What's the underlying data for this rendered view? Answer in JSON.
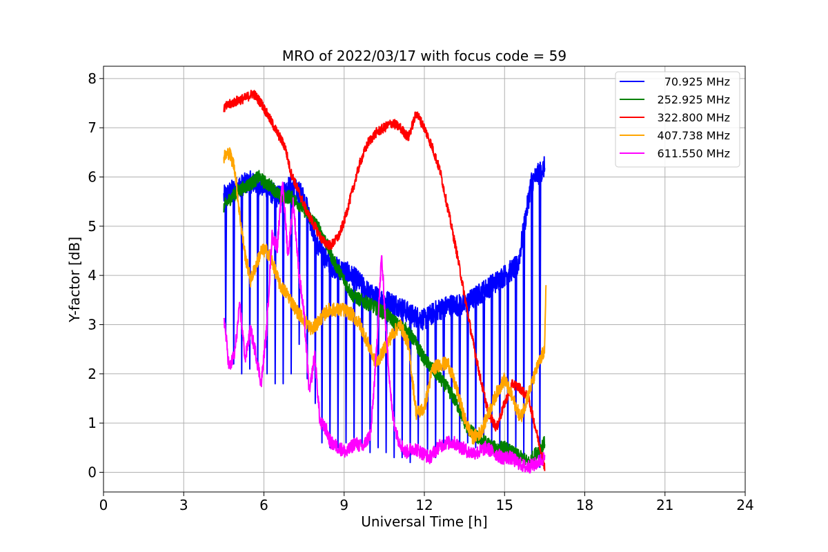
{
  "chart_data": {
    "type": "line",
    "title": "MRO of 2022/03/17 with focus code = 59",
    "xlabel": "Universal Time [h]",
    "ylabel": "Y-factor [dB]",
    "xlim": [
      0,
      24
    ],
    "ylim": [
      -0.4,
      8.25
    ],
    "xticks": [
      0,
      3,
      6,
      9,
      12,
      15,
      18,
      21,
      24
    ],
    "yticks": [
      0,
      1,
      2,
      3,
      4,
      5,
      6,
      7,
      8
    ],
    "grid": true,
    "legend_position": "top-right",
    "series": [
      {
        "name": "70.925 MHz",
        "color": "#0000ff",
        "envelope": [
          [
            4.5,
            5.6
          ],
          [
            5.0,
            5.8
          ],
          [
            5.5,
            5.9
          ],
          [
            6.0,
            5.8
          ],
          [
            6.5,
            5.6
          ],
          [
            7.0,
            5.8
          ],
          [
            7.5,
            5.6
          ],
          [
            8.0,
            4.6
          ],
          [
            8.5,
            4.2
          ],
          [
            9.0,
            4.1
          ],
          [
            9.5,
            3.9
          ],
          [
            10.0,
            3.6
          ],
          [
            10.5,
            3.5
          ],
          [
            11.0,
            3.4
          ],
          [
            11.5,
            3.2
          ],
          [
            12.0,
            3.1
          ],
          [
            12.5,
            3.3
          ],
          [
            13.0,
            3.4
          ],
          [
            13.5,
            3.4
          ],
          [
            14.0,
            3.6
          ],
          [
            14.5,
            3.8
          ],
          [
            15.0,
            4.0
          ],
          [
            15.5,
            4.2
          ],
          [
            16.0,
            5.9
          ],
          [
            16.5,
            6.2
          ]
        ],
        "dips": [
          [
            4.55,
            2.8
          ],
          [
            4.85,
            2.2
          ],
          [
            5.15,
            2.0
          ],
          [
            5.45,
            2.1
          ],
          [
            5.75,
            2.2
          ],
          [
            6.1,
            2.0
          ],
          [
            6.4,
            1.8
          ],
          [
            6.7,
            1.8
          ],
          [
            7.0,
            2.0
          ],
          [
            7.3,
            2.6
          ],
          [
            7.6,
            1.9
          ],
          [
            7.9,
            1.4
          ],
          [
            8.15,
            0.6
          ],
          [
            8.45,
            0.5
          ],
          [
            8.75,
            0.5
          ],
          [
            9.05,
            0.6
          ],
          [
            9.35,
            0.5
          ],
          [
            9.65,
            0.5
          ],
          [
            9.95,
            0.4
          ],
          [
            10.25,
            0.5
          ],
          [
            10.55,
            0.4
          ],
          [
            10.85,
            0.3
          ],
          [
            11.15,
            0.3
          ],
          [
            11.45,
            0.2
          ],
          [
            11.75,
            0.5
          ],
          [
            12.1,
            0.3
          ],
          [
            12.4,
            0.3
          ],
          [
            12.7,
            0.6
          ],
          [
            13.0,
            0.6
          ],
          [
            13.3,
            0.5
          ],
          [
            13.6,
            0.6
          ],
          [
            13.9,
            0.5
          ],
          [
            14.2,
            0.5
          ],
          [
            14.5,
            0.4
          ],
          [
            14.8,
            0.4
          ],
          [
            15.1,
            0.3
          ],
          [
            15.4,
            0.3
          ],
          [
            15.7,
            0.3
          ],
          [
            16.0,
            0.3
          ],
          [
            16.3,
            0.1
          ]
        ]
      },
      {
        "name": "252.925 MHz",
        "color": "#008000",
        "points": [
          [
            4.5,
            5.4
          ],
          [
            4.8,
            5.6
          ],
          [
            5.0,
            5.7
          ],
          [
            5.3,
            5.8
          ],
          [
            5.6,
            5.9
          ],
          [
            5.8,
            6.0
          ],
          [
            6.0,
            5.9
          ],
          [
            6.3,
            5.8
          ],
          [
            6.6,
            5.6
          ],
          [
            7.0,
            5.6
          ],
          [
            7.4,
            5.4
          ],
          [
            7.7,
            5.2
          ],
          [
            8.0,
            5.0
          ],
          [
            8.3,
            4.7
          ],
          [
            8.6,
            4.3
          ],
          [
            9.0,
            3.9
          ],
          [
            9.3,
            3.6
          ],
          [
            9.6,
            3.5
          ],
          [
            10.0,
            3.4
          ],
          [
            10.3,
            3.3
          ],
          [
            10.6,
            3.2
          ],
          [
            11.0,
            3.0
          ],
          [
            11.3,
            2.9
          ],
          [
            11.6,
            2.7
          ],
          [
            12.0,
            2.3
          ],
          [
            12.3,
            2.1
          ],
          [
            12.6,
            1.9
          ],
          [
            13.0,
            1.6
          ],
          [
            13.3,
            1.3
          ],
          [
            13.6,
            0.9
          ],
          [
            14.0,
            0.7
          ],
          [
            14.3,
            0.6
          ],
          [
            14.6,
            0.5
          ],
          [
            15.0,
            0.5
          ],
          [
            15.3,
            0.4
          ],
          [
            15.6,
            0.3
          ],
          [
            15.9,
            0.2
          ],
          [
            16.2,
            0.4
          ],
          [
            16.5,
            0.6
          ]
        ]
      },
      {
        "name": "322.800 MHz",
        "color": "#ff0000",
        "points": [
          [
            4.5,
            7.4
          ],
          [
            4.8,
            7.5
          ],
          [
            5.0,
            7.55
          ],
          [
            5.3,
            7.6
          ],
          [
            5.6,
            7.7
          ],
          [
            5.9,
            7.5
          ],
          [
            6.2,
            7.2
          ],
          [
            6.5,
            6.9
          ],
          [
            6.8,
            6.6
          ],
          [
            7.0,
            6.1
          ],
          [
            7.3,
            5.7
          ],
          [
            7.6,
            5.3
          ],
          [
            7.9,
            5.0
          ],
          [
            8.2,
            4.7
          ],
          [
            8.5,
            4.6
          ],
          [
            8.8,
            4.8
          ],
          [
            9.0,
            5.1
          ],
          [
            9.3,
            5.7
          ],
          [
            9.6,
            6.3
          ],
          [
            9.9,
            6.7
          ],
          [
            10.2,
            6.9
          ],
          [
            10.5,
            7.0
          ],
          [
            10.8,
            7.1
          ],
          [
            11.1,
            7.0
          ],
          [
            11.4,
            6.8
          ],
          [
            11.7,
            7.3
          ],
          [
            12.0,
            7.0
          ],
          [
            12.3,
            6.6
          ],
          [
            12.6,
            6.1
          ],
          [
            12.9,
            5.3
          ],
          [
            13.2,
            4.5
          ],
          [
            13.5,
            3.6
          ],
          [
            13.8,
            2.7
          ],
          [
            14.1,
            1.9
          ],
          [
            14.4,
            1.2
          ],
          [
            14.7,
            0.9
          ],
          [
            15.0,
            1.4
          ],
          [
            15.3,
            1.8
          ],
          [
            15.6,
            1.7
          ],
          [
            15.9,
            1.5
          ],
          [
            16.2,
            0.8
          ],
          [
            16.5,
            0.1
          ]
        ]
      },
      {
        "name": "407.738 MHz",
        "color": "#ffa500",
        "points": [
          [
            4.5,
            6.4
          ],
          [
            4.7,
            6.5
          ],
          [
            4.9,
            6.2
          ],
          [
            5.1,
            5.2
          ],
          [
            5.3,
            4.4
          ],
          [
            5.5,
            3.9
          ],
          [
            5.7,
            4.2
          ],
          [
            5.9,
            4.5
          ],
          [
            6.1,
            4.5
          ],
          [
            6.3,
            4.3
          ],
          [
            6.6,
            3.8
          ],
          [
            6.9,
            3.6
          ],
          [
            7.2,
            3.3
          ],
          [
            7.5,
            3.1
          ],
          [
            7.8,
            2.9
          ],
          [
            8.1,
            3.1
          ],
          [
            8.4,
            3.3
          ],
          [
            8.7,
            3.3
          ],
          [
            9.0,
            3.3
          ],
          [
            9.3,
            3.2
          ],
          [
            9.6,
            3.0
          ],
          [
            9.9,
            2.6
          ],
          [
            10.2,
            2.2
          ],
          [
            10.5,
            2.5
          ],
          [
            10.8,
            2.8
          ],
          [
            11.1,
            3.0
          ],
          [
            11.4,
            2.6
          ],
          [
            11.7,
            1.2
          ],
          [
            12.0,
            1.3
          ],
          [
            12.3,
            2.1
          ],
          [
            12.6,
            2.2
          ],
          [
            12.9,
            2.2
          ],
          [
            13.2,
            1.7
          ],
          [
            13.5,
            1.1
          ],
          [
            13.8,
            0.7
          ],
          [
            14.1,
            0.8
          ],
          [
            14.4,
            1.2
          ],
          [
            14.7,
            1.6
          ],
          [
            15.0,
            1.9
          ],
          [
            15.3,
            1.5
          ],
          [
            15.6,
            1.1
          ],
          [
            15.9,
            1.6
          ],
          [
            16.2,
            2.1
          ],
          [
            16.5,
            2.5
          ],
          [
            16.55,
            3.8
          ]
        ]
      },
      {
        "name": "611.550 MHz",
        "color": "#ff00ff",
        "points": [
          [
            4.5,
            3.2
          ],
          [
            4.7,
            2.1
          ],
          [
            4.9,
            2.4
          ],
          [
            5.1,
            3.4
          ],
          [
            5.3,
            2.3
          ],
          [
            5.5,
            2.9
          ],
          [
            5.7,
            2.4
          ],
          [
            5.9,
            1.8
          ],
          [
            6.1,
            2.9
          ],
          [
            6.3,
            4.8
          ],
          [
            6.5,
            4.6
          ],
          [
            6.7,
            5.9
          ],
          [
            6.9,
            4.4
          ],
          [
            7.1,
            5.5
          ],
          [
            7.3,
            4.1
          ],
          [
            7.5,
            3.2
          ],
          [
            7.7,
            1.6
          ],
          [
            7.9,
            2.4
          ],
          [
            8.1,
            1.0
          ],
          [
            8.3,
            0.9
          ],
          [
            8.5,
            0.6
          ],
          [
            8.8,
            0.5
          ],
          [
            9.1,
            0.4
          ],
          [
            9.4,
            0.6
          ],
          [
            9.7,
            0.5
          ],
          [
            10.0,
            0.8
          ],
          [
            10.2,
            2.4
          ],
          [
            10.4,
            4.4
          ],
          [
            10.6,
            2.6
          ],
          [
            10.8,
            1.2
          ],
          [
            11.0,
            0.7
          ],
          [
            11.3,
            0.4
          ],
          [
            11.6,
            0.5
          ],
          [
            11.9,
            0.4
          ],
          [
            12.2,
            0.3
          ],
          [
            12.5,
            0.5
          ],
          [
            12.8,
            0.6
          ],
          [
            13.1,
            0.6
          ],
          [
            13.4,
            0.5
          ],
          [
            13.7,
            0.4
          ],
          [
            14.0,
            0.4
          ],
          [
            14.3,
            0.5
          ],
          [
            14.6,
            0.4
          ],
          [
            14.9,
            0.3
          ],
          [
            15.2,
            0.3
          ],
          [
            15.5,
            0.2
          ],
          [
            15.8,
            0.1
          ],
          [
            16.1,
            0.15
          ],
          [
            16.5,
            0.3
          ]
        ]
      }
    ]
  }
}
